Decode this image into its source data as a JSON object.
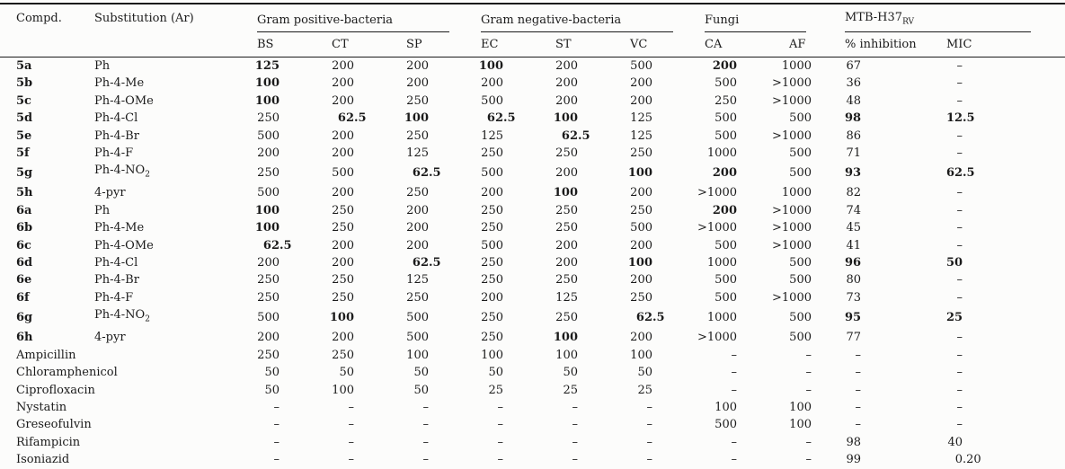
{
  "colors": {
    "ink": "#1b1b1b",
    "background": "#fcfcfb"
  },
  "table": {
    "corner": {
      "compd_label": "Compd.",
      "substitution_label": "Substitution (Ar)"
    },
    "groups": [
      {
        "label": "Gram positive-bacteria"
      },
      {
        "label": "Gram negative-bacteria"
      },
      {
        "label": "Fungi"
      },
      {
        "label": "MTB-H37",
        "subscript": "RV"
      }
    ],
    "sub_headers": [
      "BS",
      "CT",
      "SP",
      "EC",
      "ST",
      "VC",
      "CA",
      "AF",
      "% inhibition",
      "MIC"
    ],
    "rows": [
      {
        "compd": "5a",
        "bold_compd": true,
        "substitution": "Ph",
        "values": [
          "125",
          "200",
          "200",
          "100",
          "200",
          "500",
          "200",
          "1000",
          "67",
          "–"
        ],
        "bold_cols": [
          0,
          3,
          6
        ]
      },
      {
        "compd": "5b",
        "bold_compd": true,
        "substitution": "Ph-4-Me",
        "values": [
          "100",
          "200",
          "200",
          "200",
          "200",
          "200",
          "500",
          ">1000",
          "36",
          "–"
        ],
        "bold_cols": [
          0
        ]
      },
      {
        "compd": "5c",
        "bold_compd": true,
        "substitution": "Ph-4-OMe",
        "values": [
          "100",
          "200",
          "250",
          "500",
          "200",
          "200",
          "250",
          ">1000",
          "48",
          "–"
        ],
        "bold_cols": [
          0
        ]
      },
      {
        "compd": "5d",
        "bold_compd": true,
        "substitution": "Ph-4-Cl",
        "values": [
          "250",
          "62.5",
          "100",
          "62.5",
          "100",
          "125",
          "500",
          "500",
          "98",
          "12.5"
        ],
        "bold_cols": [
          1,
          2,
          3,
          4,
          8,
          9
        ]
      },
      {
        "compd": "5e",
        "bold_compd": true,
        "substitution": "Ph-4-Br",
        "values": [
          "500",
          "200",
          "250",
          "125",
          "62.5",
          "125",
          "500",
          ">1000",
          "86",
          "–"
        ],
        "bold_cols": [
          4
        ]
      },
      {
        "compd": "5f",
        "bold_compd": true,
        "substitution": "Ph-4-F",
        "values": [
          "200",
          "200",
          "125",
          "250",
          "250",
          "250",
          "1000",
          "500",
          "71",
          "–"
        ],
        "bold_cols": []
      },
      {
        "compd": "5g",
        "bold_compd": true,
        "substitution": "Ph-4-NO2",
        "values": [
          "250",
          "500",
          "62.5",
          "500",
          "200",
          "100",
          "200",
          "500",
          "93",
          "62.5"
        ],
        "bold_cols": [
          2,
          5,
          6,
          8,
          9
        ]
      },
      {
        "compd": "5h",
        "bold_compd": true,
        "substitution": "4-pyr",
        "values": [
          "500",
          "200",
          "250",
          "200",
          "100",
          "200",
          ">1000",
          "1000",
          "82",
          "–"
        ],
        "bold_cols": [
          4
        ]
      },
      {
        "compd": "6a",
        "bold_compd": true,
        "substitution": "Ph",
        "values": [
          "100",
          "250",
          "200",
          "250",
          "250",
          "250",
          "200",
          ">1000",
          "74",
          "–"
        ],
        "bold_cols": [
          0,
          6
        ]
      },
      {
        "compd": "6b",
        "bold_compd": true,
        "substitution": "Ph-4-Me",
        "values": [
          "100",
          "250",
          "200",
          "250",
          "250",
          "500",
          ">1000",
          ">1000",
          "45",
          "–"
        ],
        "bold_cols": [
          0
        ]
      },
      {
        "compd": "6c",
        "bold_compd": true,
        "substitution": "Ph-4-OMe",
        "values": [
          "62.5",
          "200",
          "200",
          "500",
          "200",
          "200",
          "500",
          ">1000",
          "41",
          "–"
        ],
        "bold_cols": [
          0
        ]
      },
      {
        "compd": "6d",
        "bold_compd": true,
        "substitution": "Ph-4-Cl",
        "values": [
          "200",
          "200",
          "62.5",
          "250",
          "200",
          "100",
          "1000",
          "500",
          "96",
          "50"
        ],
        "bold_cols": [
          2,
          5,
          8,
          9
        ]
      },
      {
        "compd": "6e",
        "bold_compd": true,
        "substitution": "Ph-4-Br",
        "values": [
          "250",
          "250",
          "125",
          "250",
          "250",
          "200",
          "500",
          "500",
          "80",
          "–"
        ],
        "bold_cols": []
      },
      {
        "compd": "6f",
        "bold_compd": true,
        "substitution": "Ph-4-F",
        "values": [
          "250",
          "250",
          "250",
          "200",
          "125",
          "250",
          "500",
          ">1000",
          "73",
          "–"
        ],
        "bold_cols": []
      },
      {
        "compd": "6g",
        "bold_compd": true,
        "substitution": "Ph-4-NO2",
        "values": [
          "500",
          "100",
          "500",
          "250",
          "250",
          "62.5",
          "1000",
          "500",
          "95",
          "25"
        ],
        "bold_cols": [
          1,
          5,
          8,
          9
        ]
      },
      {
        "compd": "6h",
        "bold_compd": true,
        "substitution": "4-pyr",
        "values": [
          "200",
          "200",
          "500",
          "250",
          "100",
          "200",
          ">1000",
          "500",
          "77",
          "–"
        ],
        "bold_cols": [
          4
        ]
      },
      {
        "compd": "Ampicillin",
        "bold_compd": false,
        "substitution": "",
        "values": [
          "250",
          "250",
          "100",
          "100",
          "100",
          "100",
          "–",
          "–",
          "–",
          "–"
        ],
        "bold_cols": []
      },
      {
        "compd": "Chloramphenicol",
        "bold_compd": false,
        "substitution": "",
        "values": [
          "50",
          "50",
          "50",
          "50",
          "50",
          "50",
          "–",
          "–",
          "–",
          "–"
        ],
        "bold_cols": []
      },
      {
        "compd": "Ciprofloxacin",
        "bold_compd": false,
        "substitution": "",
        "values": [
          "50",
          "100",
          "50",
          "25",
          "25",
          "25",
          "–",
          "–",
          "–",
          "–"
        ],
        "bold_cols": []
      },
      {
        "compd": "Nystatin",
        "bold_compd": false,
        "substitution": "",
        "values": [
          "–",
          "–",
          "–",
          "–",
          "–",
          "–",
          "100",
          "100",
          "–",
          "–"
        ],
        "bold_cols": []
      },
      {
        "compd": "Greseofulvin",
        "bold_compd": false,
        "substitution": "",
        "values": [
          "–",
          "–",
          "–",
          "–",
          "–",
          "–",
          "500",
          "100",
          "–",
          "–"
        ],
        "bold_cols": []
      },
      {
        "compd": "Rifampicin",
        "bold_compd": false,
        "substitution": "",
        "values": [
          "–",
          "–",
          "–",
          "–",
          "–",
          "–",
          "–",
          "–",
          "98",
          "40"
        ],
        "bold_cols": []
      },
      {
        "compd": "Isoniazid",
        "bold_compd": false,
        "substitution": "",
        "values": [
          "–",
          "–",
          "–",
          "–",
          "–",
          "–",
          "–",
          "–",
          "99",
          "0.20"
        ],
        "bold_cols": []
      }
    ]
  }
}
